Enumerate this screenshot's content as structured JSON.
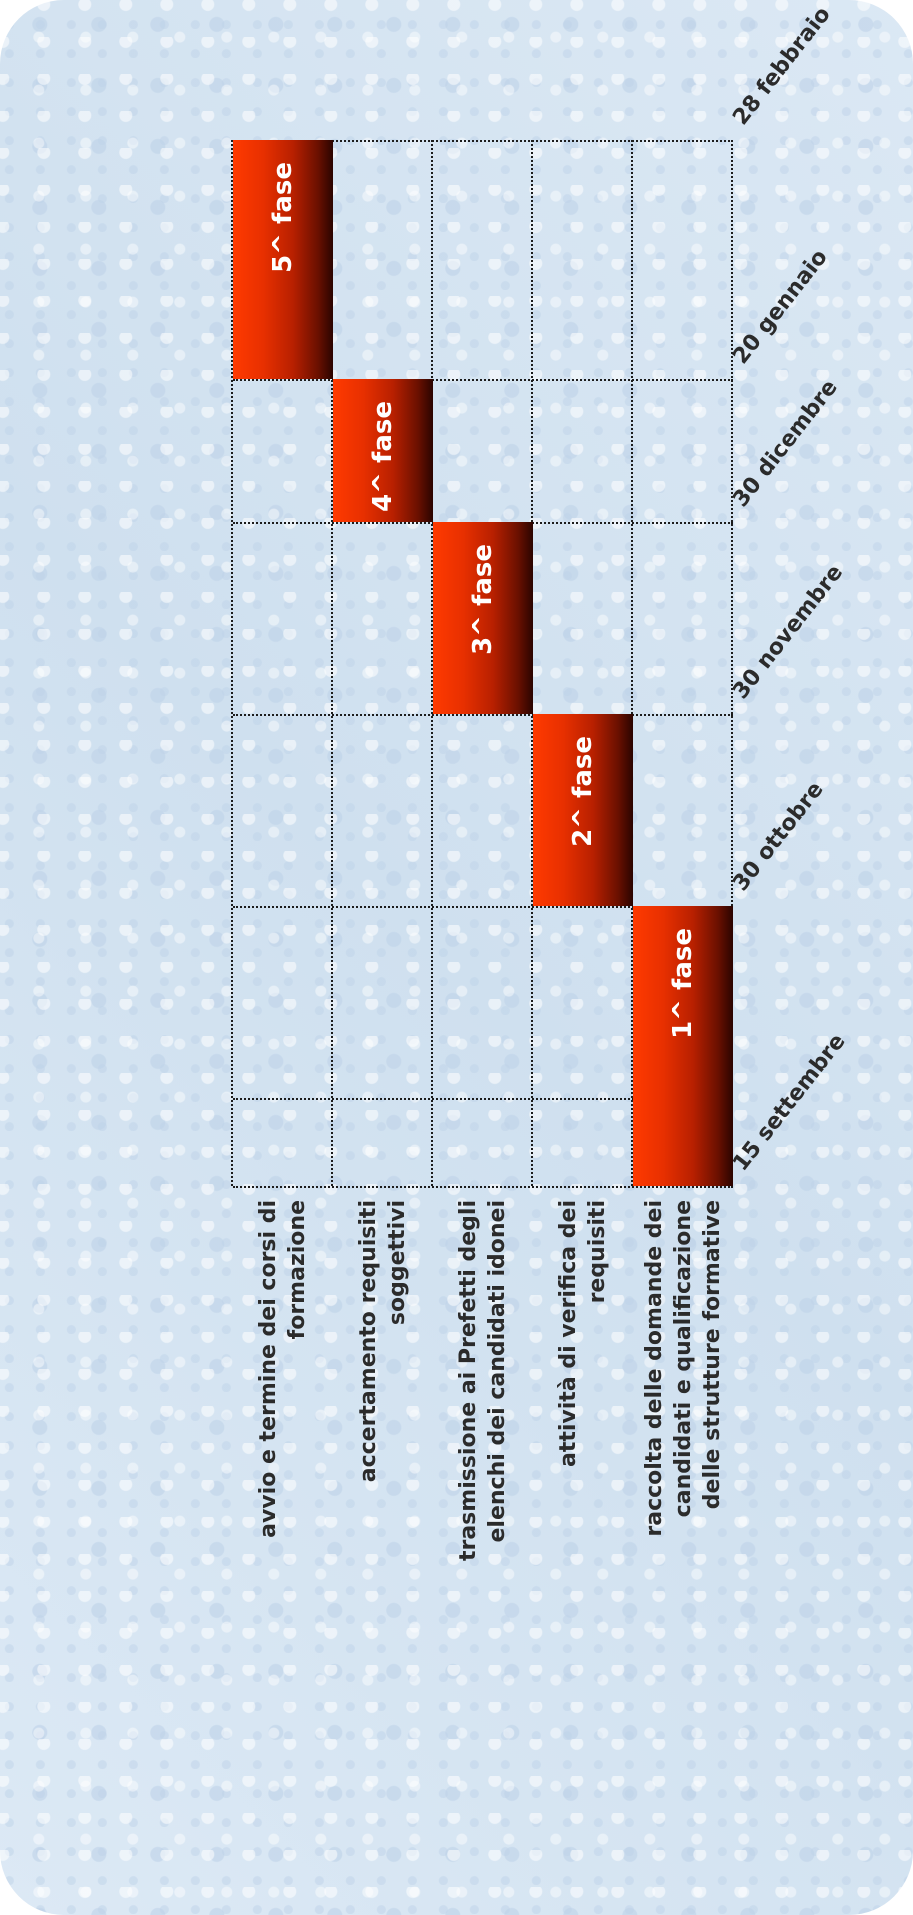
{
  "dates": [
    "15 settembre",
    "30 ottobre",
    "30 novembre",
    "30 dicembre",
    "20 gennaio",
    "28 febbraio"
  ],
  "rows": [
    {
      "label": "raccolta delle domande dei candidati e qualificazione delle strutture formative",
      "phase": "1^ fase"
    },
    {
      "label": "attività di verifica dei requisiti",
      "phase": "2^ fase"
    },
    {
      "label": "trasmissione ai Prefetti degli elenchi dei candidati idonei",
      "phase": "3^ fase"
    },
    {
      "label": "accertamento requisiti soggettivi",
      "phase": "4^ fase"
    },
    {
      "label": "avvio e termine dei corsi di formazione",
      "phase": "5^ fase"
    }
  ],
  "colors": {
    "bar_light": "#ff3a00",
    "bar_dark": "#2a0400",
    "background": "#d5e4f1"
  }
}
